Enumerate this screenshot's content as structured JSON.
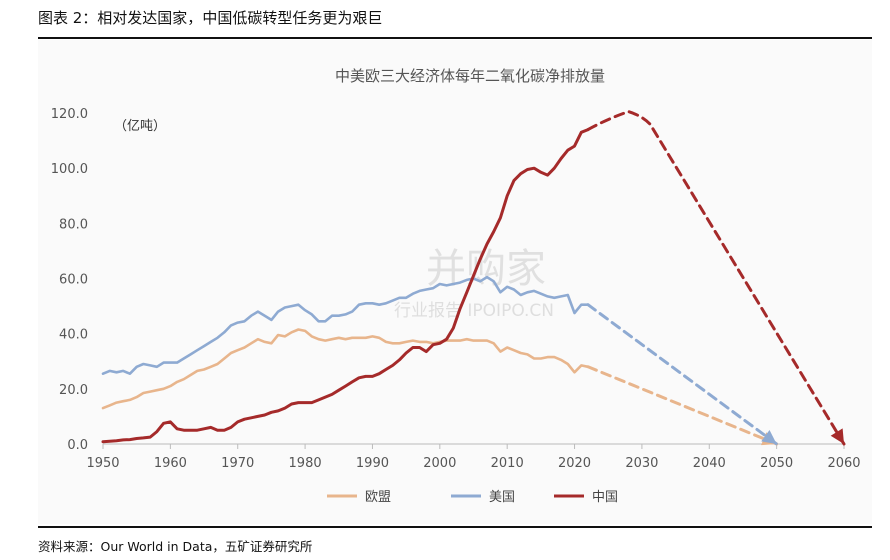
{
  "figure": {
    "title": "图表 2：相对发达国家，中国低碳转型任务更为艰巨",
    "source": "资料来源：Our  World in Data，五矿证券研究所"
  },
  "watermark": {
    "main": "并购家",
    "sub": "行业报告 IPOIPO.CN"
  },
  "chart_data": {
    "type": "line",
    "title": "中美欧三大经济体每年二氧化碳净排放量",
    "unit_label": "（亿吨）",
    "xlim": [
      1950,
      2060
    ],
    "ylim": [
      0,
      120
    ],
    "x_ticks": [
      "1950",
      "1960",
      "1970",
      "1980",
      "1990",
      "2000",
      "2010",
      "2020",
      "2030",
      "2040",
      "2050",
      "2060"
    ],
    "y_ticks": [
      "0.0",
      "20.0",
      "40.0",
      "60.0",
      "80.0",
      "100.0",
      "120.0"
    ],
    "grid": false,
    "legend_position": "bottom",
    "series": [
      {
        "name": "欧盟",
        "color": "#e8b58c",
        "x": [
          1950,
          1951,
          1952,
          1953,
          1954,
          1955,
          1956,
          1957,
          1958,
          1959,
          1960,
          1961,
          1962,
          1963,
          1964,
          1965,
          1966,
          1967,
          1968,
          1969,
          1970,
          1971,
          1972,
          1973,
          1974,
          1975,
          1976,
          1977,
          1978,
          1979,
          1980,
          1981,
          1982,
          1983,
          1984,
          1985,
          1986,
          1987,
          1988,
          1989,
          1990,
          1991,
          1992,
          1993,
          1994,
          1995,
          1996,
          1997,
          1998,
          1999,
          2000,
          2001,
          2002,
          2003,
          2004,
          2005,
          2006,
          2007,
          2008,
          2009,
          2010,
          2011,
          2012,
          2013,
          2014,
          2015,
          2016,
          2017,
          2018,
          2019,
          2020,
          2021,
          2022
        ],
        "y": [
          13,
          14,
          15,
          15.5,
          16,
          17,
          18.5,
          19,
          19.5,
          20,
          21,
          22.5,
          23.5,
          25,
          26.5,
          27,
          28,
          29,
          31,
          33,
          34,
          35,
          36.5,
          38,
          37,
          36.5,
          39.5,
          39,
          40.5,
          41.5,
          41,
          39,
          38,
          37.5,
          38,
          38.5,
          38,
          38.5,
          38.5,
          38.5,
          39,
          38.5,
          37,
          36.5,
          36.5,
          37,
          37.5,
          37,
          37,
          36.5,
          37,
          37.5,
          37.5,
          37.5,
          38,
          37.5,
          37.5,
          37.5,
          36.5,
          33.5,
          35,
          34,
          33,
          32.5,
          31,
          31,
          31.5,
          31.5,
          30.5,
          29,
          26,
          28.5,
          28
        ],
        "projection": {
          "x": [
            2022,
            2050
          ],
          "y": [
            28,
            0
          ]
        }
      },
      {
        "name": "美国",
        "color": "#8eaad2",
        "x": [
          1950,
          1951,
          1952,
          1953,
          1954,
          1955,
          1956,
          1957,
          1958,
          1959,
          1960,
          1961,
          1962,
          1963,
          1964,
          1965,
          1966,
          1967,
          1968,
          1969,
          1970,
          1971,
          1972,
          1973,
          1974,
          1975,
          1976,
          1977,
          1978,
          1979,
          1980,
          1981,
          1982,
          1983,
          1984,
          1985,
          1986,
          1987,
          1988,
          1989,
          1990,
          1991,
          1992,
          1993,
          1994,
          1995,
          1996,
          1997,
          1998,
          1999,
          2000,
          2001,
          2002,
          2003,
          2004,
          2005,
          2006,
          2007,
          2008,
          2009,
          2010,
          2011,
          2012,
          2013,
          2014,
          2015,
          2016,
          2017,
          2018,
          2019,
          2020,
          2021,
          2022
        ],
        "y": [
          25.5,
          26.5,
          26,
          26.5,
          25.5,
          28,
          29,
          28.5,
          28,
          29.5,
          29.5,
          29.5,
          31,
          32.5,
          34,
          35.5,
          37,
          38.5,
          40.5,
          43,
          44,
          44.5,
          46.5,
          48,
          46.5,
          45,
          48,
          49.5,
          50,
          50.5,
          48.5,
          47,
          44.5,
          44.5,
          46.5,
          46.5,
          47,
          48,
          50.5,
          51,
          51,
          50.5,
          51,
          52,
          53,
          53,
          54.5,
          55.5,
          56,
          56.5,
          58,
          57.5,
          58,
          58.5,
          59.5,
          60,
          59,
          60.5,
          59,
          55,
          57,
          56,
          54,
          55,
          55.5,
          54.5,
          53.5,
          53,
          53.5,
          54,
          47.5,
          50.5,
          50.5
        ],
        "projection": {
          "x": [
            2022,
            2050
          ],
          "y": [
            50.5,
            0
          ]
        }
      },
      {
        "name": "中国",
        "color": "#a52a2a",
        "x": [
          1950,
          1951,
          1952,
          1953,
          1954,
          1955,
          1956,
          1957,
          1958,
          1959,
          1960,
          1961,
          1962,
          1963,
          1964,
          1965,
          1966,
          1967,
          1968,
          1969,
          1970,
          1971,
          1972,
          1973,
          1974,
          1975,
          1976,
          1977,
          1978,
          1979,
          1980,
          1981,
          1982,
          1983,
          1984,
          1985,
          1986,
          1987,
          1988,
          1989,
          1990,
          1991,
          1992,
          1993,
          1994,
          1995,
          1996,
          1997,
          1998,
          1999,
          2000,
          2001,
          2002,
          2003,
          2004,
          2005,
          2006,
          2007,
          2008,
          2009,
          2010,
          2011,
          2012,
          2013,
          2014,
          2015,
          2016,
          2017,
          2018,
          2019,
          2020,
          2021,
          2022
        ],
        "y": [
          0.8,
          1,
          1.2,
          1.5,
          1.6,
          2,
          2.2,
          2.5,
          4.5,
          7.5,
          8,
          5.5,
          5,
          5,
          5,
          5.5,
          6,
          5,
          5,
          6,
          8,
          9,
          9.5,
          10,
          10.5,
          11.5,
          12,
          13,
          14.5,
          15,
          15,
          15,
          16,
          17,
          18,
          19.5,
          21,
          22.5,
          24,
          24.5,
          24.5,
          25.5,
          27,
          28.5,
          30.5,
          33,
          35,
          35,
          33.5,
          36,
          36.5,
          38,
          42,
          49,
          55,
          61,
          67,
          72.5,
          77,
          82,
          90,
          95.5,
          98,
          99.5,
          100,
          98.5,
          97.5,
          100,
          103.5,
          106.5,
          108,
          113,
          114
        ],
        "projection": {
          "x": [
            2022,
            2025,
            2028,
            2030,
            2060
          ],
          "y": [
            114,
            118,
            120.5,
            119,
            0
          ]
        }
      }
    ]
  }
}
